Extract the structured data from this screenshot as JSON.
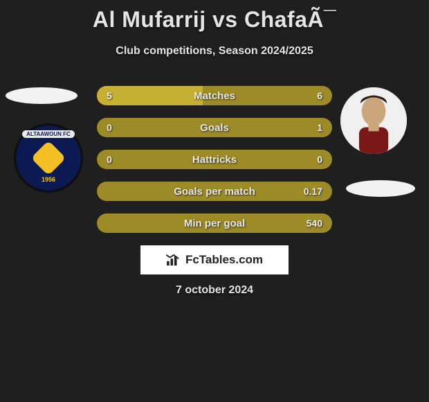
{
  "title": "Al Mufarrij vs ChafaÃ¯",
  "subtitle": "Club competitions, Season 2024/2025",
  "left": {
    "club_name": "ALTAAWOUN FC",
    "club_year": "1956"
  },
  "bars": [
    {
      "label": "Matches",
      "left_val": "5",
      "right_val": "6",
      "left_fill_pct": 45,
      "right_fill_pct": 0
    },
    {
      "label": "Goals",
      "left_val": "0",
      "right_val": "1",
      "left_fill_pct": 0,
      "right_fill_pct": 0
    },
    {
      "label": "Hattricks",
      "left_val": "0",
      "right_val": "0",
      "left_fill_pct": 0,
      "right_fill_pct": 0
    },
    {
      "label": "Goals per match",
      "left_val": "",
      "right_val": "0.17",
      "left_fill_pct": 0,
      "right_fill_pct": 0
    },
    {
      "label": "Min per goal",
      "left_val": "",
      "right_val": "540",
      "left_fill_pct": 0,
      "right_fill_pct": 0
    }
  ],
  "brand": "FcTables.com",
  "date": "7 october 2024",
  "colors": {
    "bg": "#1f1f1f",
    "bar_base": "#9d8b27",
    "bar_fill": "#c6b033",
    "text": "#e5e5e5"
  }
}
